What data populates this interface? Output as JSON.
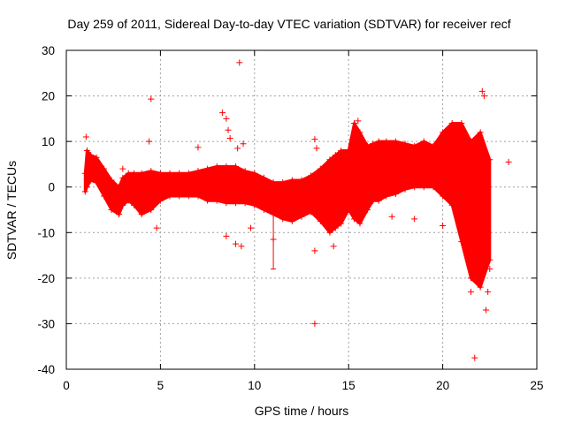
{
  "chart_data": {
    "type": "scatter",
    "title": "Day 259 of 2011, Sidereal Day-to-day VTEC variation (SDTVAR) for receiver recf",
    "xlabel": "GPS time / hours",
    "ylabel": "SDTVAR / TECUs",
    "xlim": [
      0,
      25
    ],
    "ylim": [
      -40,
      30
    ],
    "x_ticks": [
      0,
      5,
      10,
      15,
      20,
      25
    ],
    "y_ticks": [
      -40,
      -30,
      -20,
      -10,
      0,
      10,
      20,
      30
    ],
    "grid": true,
    "marker": "+",
    "color": "#ff0000",
    "series": [
      {
        "name": "SDTVAR",
        "dense_band": {
          "x": [
            1.0,
            1.1,
            1.3,
            1.6,
            2.0,
            2.4,
            2.8,
            3.0,
            3.3,
            3.6,
            4.0,
            4.5,
            5.0,
            5.5,
            6.0,
            6.5,
            7.0,
            7.5,
            8.0,
            8.5,
            9.0,
            9.5,
            10.0,
            10.5,
            11.0,
            11.5,
            12.0,
            12.5,
            13.0,
            13.5,
            14.0,
            14.3,
            14.6,
            15.0,
            15.3,
            15.6,
            16.0,
            16.3,
            16.6,
            17.0,
            17.5,
            18.0,
            18.5,
            19.0,
            19.5,
            20.0,
            20.5,
            21.0,
            21.5,
            22.0,
            22.5
          ],
          "upper": [
            3.0,
            8.0,
            7.0,
            6.5,
            4.0,
            1.5,
            0.0,
            2.0,
            3.0,
            3.0,
            3.0,
            3.5,
            3.0,
            3.0,
            3.0,
            3.0,
            3.5,
            4.0,
            4.5,
            4.5,
            4.5,
            3.5,
            3.0,
            2.0,
            1.0,
            1.0,
            1.5,
            1.5,
            2.5,
            4.0,
            6.0,
            7.0,
            8.0,
            8.0,
            14.0,
            12.0,
            9.0,
            9.5,
            10.0,
            10.0,
            10.0,
            9.5,
            9.0,
            10.0,
            9.0,
            12.0,
            14.0,
            14.0,
            10.0,
            12.0,
            6.0
          ],
          "lower": [
            -1.0,
            0.0,
            1.5,
            1.0,
            -2.0,
            -5.0,
            -6.0,
            -4.0,
            -3.0,
            -4.0,
            -6.0,
            -5.0,
            -3.0,
            -2.0,
            -2.0,
            -2.0,
            -2.0,
            -3.0,
            -3.0,
            -3.5,
            -3.5,
            -3.5,
            -4.0,
            -5.0,
            -6.0,
            -7.0,
            -7.5,
            -6.5,
            -5.5,
            -7.5,
            -10.0,
            -9.0,
            -8.0,
            -5.0,
            -7.0,
            -8.0,
            -5.0,
            -3.0,
            -3.0,
            -2.0,
            -1.5,
            -0.5,
            0.0,
            0.0,
            0.0,
            -2.0,
            -4.0,
            -12.0,
            -20.0,
            -22.0,
            -16.0
          ]
        },
        "outliers": [
          {
            "x": 4.5,
            "y": 19.3
          },
          {
            "x": 4.4,
            "y": 10.0
          },
          {
            "x": 9.2,
            "y": 27.3
          },
          {
            "x": 8.3,
            "y": 16.3
          },
          {
            "x": 8.5,
            "y": 15.0
          },
          {
            "x": 8.6,
            "y": 12.5
          },
          {
            "x": 8.7,
            "y": 10.7
          },
          {
            "x": 9.4,
            "y": 9.5
          },
          {
            "x": 9.1,
            "y": 8.5
          },
          {
            "x": 7.0,
            "y": 8.7
          },
          {
            "x": 8.5,
            "y": -10.8
          },
          {
            "x": 9.0,
            "y": -12.5
          },
          {
            "x": 9.3,
            "y": -13.0
          },
          {
            "x": 9.8,
            "y": -9.0
          },
          {
            "x": 11.0,
            "y": -11.5
          },
          {
            "x": 13.2,
            "y": 10.5
          },
          {
            "x": 13.3,
            "y": 8.5
          },
          {
            "x": 13.2,
            "y": -14.0
          },
          {
            "x": 13.2,
            "y": -30.0
          },
          {
            "x": 14.2,
            "y": -13.0
          },
          {
            "x": 15.5,
            "y": 14.5
          },
          {
            "x": 17.3,
            "y": -6.5
          },
          {
            "x": 18.5,
            "y": -7.0
          },
          {
            "x": 20.0,
            "y": -8.5
          },
          {
            "x": 21.5,
            "y": -23.0
          },
          {
            "x": 21.7,
            "y": -37.5
          },
          {
            "x": 22.1,
            "y": 21.0
          },
          {
            "x": 22.2,
            "y": 20.0
          },
          {
            "x": 22.3,
            "y": -27.0
          },
          {
            "x": 22.4,
            "y": -23.0
          },
          {
            "x": 22.5,
            "y": -18.0
          },
          {
            "x": 23.5,
            "y": 5.5
          },
          {
            "x": 1.05,
            "y": 11.0
          },
          {
            "x": 3.0,
            "y": 4.0
          },
          {
            "x": 4.8,
            "y": -9.0
          }
        ],
        "error_bar": {
          "x": 11.0,
          "low": -18.0,
          "high": -5.0
        }
      }
    ]
  }
}
